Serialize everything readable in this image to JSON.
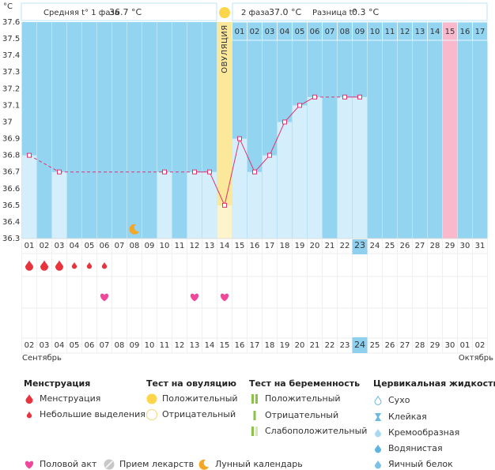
{
  "chart_data": {
    "type": "line",
    "y_unit": "°C",
    "categories": [
      "01",
      "02",
      "03",
      "04",
      "05",
      "06",
      "07",
      "08",
      "09",
      "10",
      "11",
      "12",
      "13",
      "14",
      "15",
      "16",
      "17",
      "18",
      "19",
      "20",
      "21",
      "22",
      "23",
      "24",
      "25",
      "26",
      "27",
      "28",
      "29",
      "30",
      "31"
    ],
    "values": [
      36.8,
      null,
      36.7,
      null,
      null,
      null,
      null,
      null,
      null,
      36.7,
      null,
      36.7,
      36.7,
      36.5,
      36.9,
      36.7,
      36.8,
      37.0,
      37.1,
      37.15,
      null,
      37.15,
      37.15,
      null,
      null,
      null,
      null,
      null,
      null,
      null,
      null
    ],
    "cycle_days": [
      null,
      null,
      null,
      null,
      null,
      null,
      null,
      null,
      null,
      null,
      null,
      null,
      null,
      null,
      "01",
      "02",
      "03",
      "04",
      "05",
      "06",
      "07",
      "08",
      "09",
      "10",
      "11",
      "12",
      "13",
      "14",
      "15",
      "16",
      "17"
    ],
    "ylim": [
      36.3,
      37.6
    ],
    "yticks": [
      36.3,
      36.4,
      36.5,
      36.6,
      36.7,
      36.8,
      36.9,
      {
        "value": 37.0,
        "label": "37"
      },
      37.1,
      37.2,
      37.3,
      37.4,
      37.5,
      37.6
    ],
    "ovulation_category": "14",
    "ovulation_label": "ОВУЛЯЦИЯ",
    "expected_period_category": "29",
    "today": "23",
    "line_color": "#e0336f",
    "background_color": "#93d4f1",
    "bar_color": "#d4effb",
    "dates": [
      "02",
      "03",
      "04",
      "05",
      "06",
      "07",
      "08",
      "09",
      "10",
      "11",
      "12",
      "13",
      "14",
      "15",
      "16",
      "17",
      "18",
      "19",
      "20",
      "21",
      "22",
      "23",
      "24",
      "25",
      "26",
      "27",
      "28",
      "29",
      "30",
      "01",
      "02"
    ],
    "weekend": [
      true,
      true,
      false,
      false,
      false,
      false,
      false,
      true,
      true,
      false,
      false,
      false,
      false,
      false,
      true,
      true,
      false,
      false,
      false,
      false,
      false,
      true,
      false,
      false,
      false,
      false,
      false,
      false,
      true,
      true,
      false
    ],
    "months": [
      "Сентябрь",
      "Октябрь"
    ],
    "menstruation_heavy": [
      "01",
      "02",
      "03"
    ],
    "menstruation_light": [
      "04",
      "05",
      "06"
    ],
    "intercourse": [
      "06",
      "12",
      "14"
    ],
    "moon": [
      "08"
    ]
  },
  "header": {
    "phase1_label": "Средняя t° 1 фаза",
    "phase1_value": "36.7 °C",
    "phase2_label": "2 фаза",
    "phase2_value": "37.0 °C",
    "diff_label": "Разница t°",
    "diff_value": "0.3 °C"
  },
  "legend": {
    "menstruation": {
      "title": "Менструация",
      "items": [
        "Менструация",
        "Небольшие выделения"
      ]
    },
    "ovulation_test": {
      "title": "Тест на овуляцию",
      "items": [
        "Положительный",
        "Отрицательный"
      ]
    },
    "pregnancy_test": {
      "title": "Тест на беременность",
      "items": [
        "Положительный",
        "Отрицательный",
        "Слабоположительный"
      ]
    },
    "cervical_fluid": {
      "title": "Цервикальная жидкость",
      "items": [
        "Сухо",
        "Клейкая",
        "Кремообразная",
        "Водянистая",
        "Яичный белок"
      ]
    },
    "other": [
      "Половой акт",
      "Прием лекарств",
      "Лунный календарь"
    ]
  }
}
